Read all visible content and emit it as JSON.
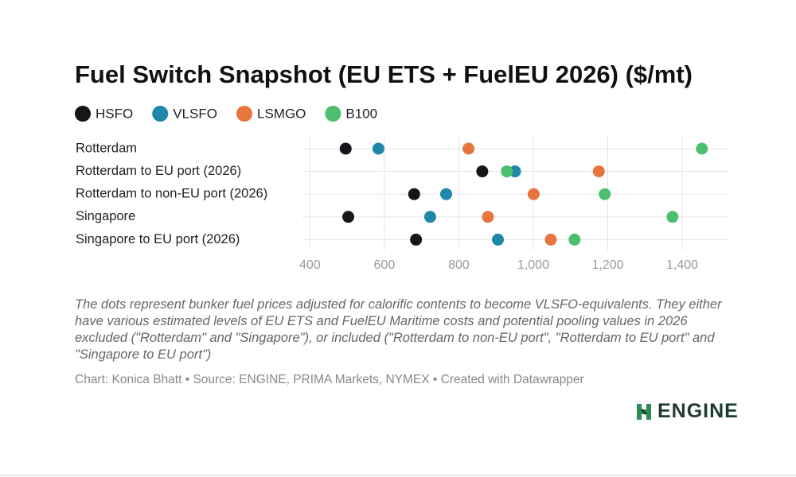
{
  "chart_data": {
    "type": "dot",
    "title": "Fuel Switch Snapshot (EU ETS + FuelEU 2026) ($/mt)",
    "categories": [
      "Rotterdam",
      "Rotterdam to EU port (2026)",
      "Rotterdam to non-EU port (2026)",
      "Singapore",
      "Singapore to EU port (2026)"
    ],
    "series": [
      {
        "name": "HSFO",
        "color": "#15151a",
        "values": [
          496,
          863,
          680,
          503,
          685
        ]
      },
      {
        "name": "VLSFO",
        "color": "#1f87a8",
        "values": [
          584,
          951,
          766,
          723,
          905
        ]
      },
      {
        "name": "LSMGO",
        "color": "#e6763d",
        "values": [
          826,
          1176,
          1001,
          878,
          1047
        ]
      },
      {
        "name": "B100",
        "color": "#4dbf6c",
        "values": [
          1453,
          929,
          1192,
          1374,
          1111
        ]
      }
    ],
    "xlim": [
      380,
      1524
    ],
    "xticks": [
      400,
      600,
      800,
      {
        "value": 1000,
        "label": "1,000"
      },
      {
        "value": 1200,
        "label": "1,200"
      },
      {
        "value": 1400,
        "label": "1,400"
      }
    ],
    "grid": true,
    "legend": "top",
    "notes": "The dots represent bunker fuel prices adjusted for calorific contents to become VLSFO-equivalents. They either have various estimated levels of EU ETS and FuelEU Maritime costs and potential pooling values in 2026 excluded (\"Rotterdam\" and \"Singapore\"), or included (\"Rotterdam to non-EU port\", \"Rotterdam to EU port\" and \"Singapore to EU port\")",
    "credit": "Chart: Konica Bhatt • Source: ENGINE, PRIMA Markets, NYMEX • Created with Datawrapper"
  },
  "logo": {
    "text": "ENGINE"
  }
}
